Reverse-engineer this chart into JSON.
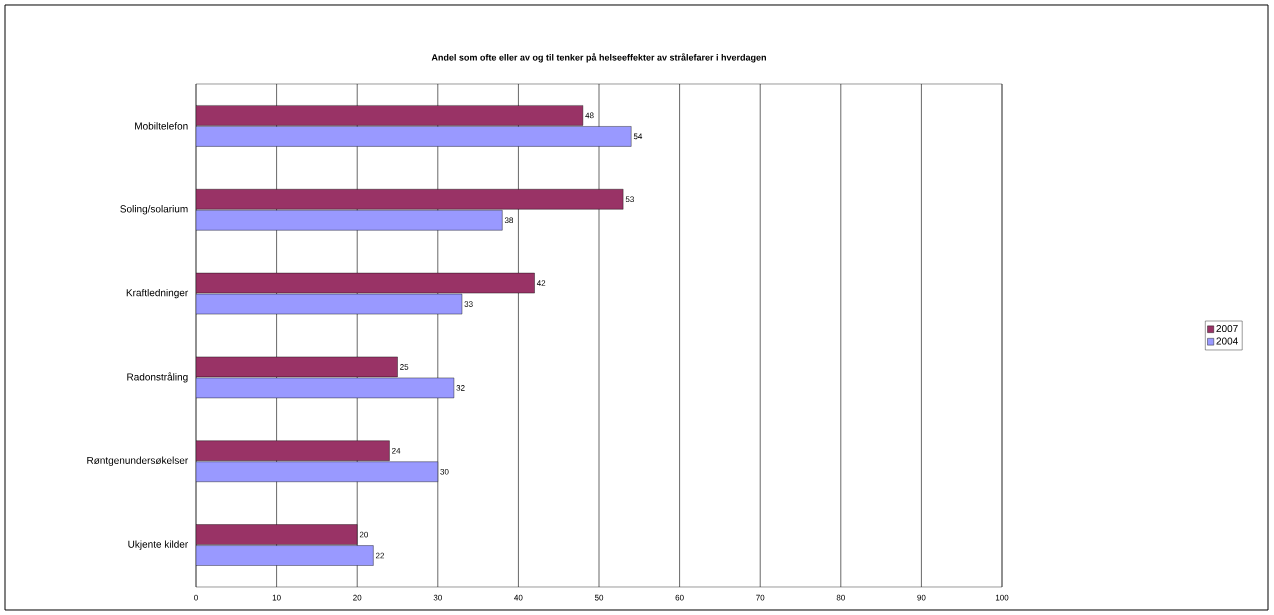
{
  "chart_data": {
    "type": "bar",
    "orientation": "horizontal",
    "title": "Andel som ofte eller av og til tenker på helseeffekter av strålefarer i hverdagen",
    "categories": [
      "Mobiltelefon",
      "Soling/solarium",
      "Kraftledninger",
      "Radonstråling",
      "Røntgenundersøkelser",
      "Ukjente kilder"
    ],
    "series": [
      {
        "name": "2007",
        "color": "#993366",
        "values": [
          48,
          53,
          42,
          25,
          24,
          20
        ]
      },
      {
        "name": "2004",
        "color": "#9999ff",
        "values": [
          54,
          38,
          33,
          32,
          30,
          22
        ]
      }
    ],
    "xlim": [
      0,
      100
    ],
    "xticks": [
      0,
      10,
      20,
      30,
      40,
      50,
      60,
      70,
      80,
      90,
      100
    ],
    "grid": "x",
    "legend": "right",
    "data_labels": true
  }
}
